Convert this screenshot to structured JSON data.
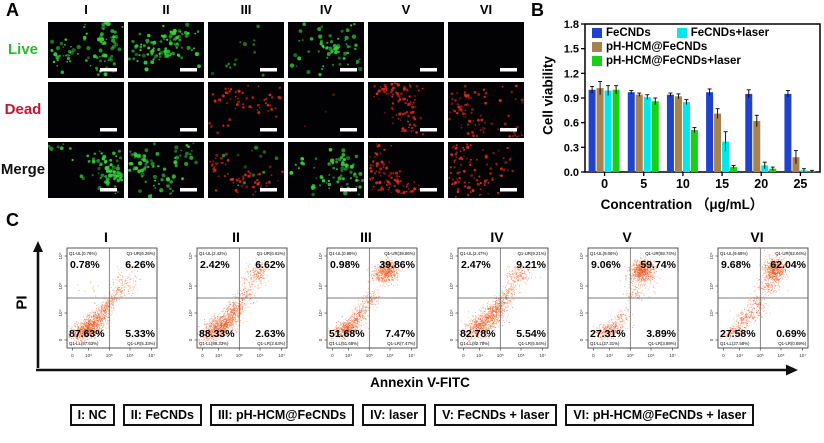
{
  "panelA": {
    "label": "A",
    "columns": [
      "I",
      "II",
      "III",
      "IV",
      "V",
      "VI"
    ],
    "rows": [
      {
        "label": "Live",
        "color": "#2eb82e"
      },
      {
        "label": "Dead",
        "color": "#c61534"
      },
      {
        "label": "Merge",
        "color": "#111111"
      }
    ],
    "cells": {
      "Live": [
        {
          "green": 95,
          "red": 0
        },
        {
          "green": 100,
          "red": 0
        },
        {
          "green": 14,
          "red": 0
        },
        {
          "green": 80,
          "red": 0
        },
        {
          "green": 0,
          "red": 0
        },
        {
          "green": 0,
          "red": 0
        }
      ],
      "Dead": [
        {
          "green": 0,
          "red": 0
        },
        {
          "green": 0,
          "red": 0
        },
        {
          "green": 0,
          "red": 70
        },
        {
          "green": 0,
          "red": 3
        },
        {
          "green": 0,
          "red": 120
        },
        {
          "green": 0,
          "red": 110
        }
      ],
      "Merge": [
        {
          "green": 95,
          "red": 0
        },
        {
          "green": 100,
          "red": 0
        },
        {
          "green": 12,
          "red": 70
        },
        {
          "green": 80,
          "red": 0
        },
        {
          "green": 0,
          "red": 120
        },
        {
          "green": 0,
          "red": 110
        }
      ]
    },
    "scale_bar_color": "#ffffff"
  },
  "panelB": {
    "label": "B"
  },
  "panelC": {
    "label": "C"
  },
  "chart_data": [
    {
      "type": "bar",
      "title": "",
      "categories": [
        "0",
        "5",
        "10",
        "15",
        "20",
        "25"
      ],
      "series": [
        {
          "name": "FeCNDs",
          "color": "#2143cb",
          "values": [
            1.0,
            0.97,
            0.94,
            0.97,
            0.95,
            0.95
          ],
          "errors": [
            0.04,
            0.02,
            0.02,
            0.04,
            0.05,
            0.04
          ]
        },
        {
          "name": "pH-HCM@FeCNDs",
          "color": "#a6824e",
          "values": [
            1.02,
            0.94,
            0.92,
            0.71,
            0.62,
            0.18
          ],
          "errors": [
            0.08,
            0.02,
            0.03,
            0.06,
            0.07,
            0.08
          ]
        },
        {
          "name": "FeCNDs+laser",
          "color": "#00e8ea",
          "values": [
            0.99,
            0.91,
            0.85,
            0.37,
            0.08,
            0.02
          ],
          "errors": [
            0.06,
            0.03,
            0.03,
            0.12,
            0.04,
            0.02
          ]
        },
        {
          "name": "pH-HCM@FeCNDs+laser",
          "color": "#16d116",
          "values": [
            1.0,
            0.86,
            0.51,
            0.06,
            0.04,
            0.01
          ],
          "errors": [
            0.05,
            0.04,
            0.03,
            0.02,
            0.02,
            0.01
          ]
        }
      ],
      "xlabel": "Concentration （μg/mL）",
      "ylabel": "Cell viability",
      "ylim": [
        0,
        1.8
      ],
      "yticks": [
        "0.0",
        "0.3",
        "0.6",
        "0.9",
        "1.2",
        "1.5",
        "1.8"
      ],
      "grid": false,
      "legend_position": "top-left-inside",
      "bar_order": [
        "FeCNDs",
        "pH-HCM@FeCNDs",
        "FeCNDs+laser",
        "pH-HCM@FeCNDs+laser"
      ]
    },
    {
      "type": "scatter",
      "subtype": "flow-cytometry-quadrants",
      "xlabel": "Annexin V-FITC",
      "ylabel": "PI",
      "xticks": [
        "0",
        "10⁴",
        "10⁵",
        "10⁶",
        "10⁷"
      ],
      "yticks": [
        "0",
        "10⁴",
        "10⁵",
        "10⁶"
      ],
      "point_color": "#f26a35",
      "point_color_dense": "#e8490f",
      "plots": [
        {
          "title": "I",
          "quadrants": {
            "UL": "0.78%",
            "UR": "6.26%",
            "LL": "87.63%",
            "LR": "5.33%"
          },
          "corner_labels": {
            "UL": "Q1-UL(0.78%)",
            "UR": "Q1-UR(6.26%)",
            "LL": "Q1-LL(87.63%)",
            "LR": "Q1-LR(5.33%)"
          },
          "clusters": [
            [
              23,
              81,
              10,
              4.5,
              -22,
              620
            ],
            [
              37,
              67,
              9,
              4,
              -38,
              230
            ],
            [
              49,
              53,
              6,
              3.5,
              -42,
              80
            ],
            [
              66,
              34,
              8,
              6,
              -25,
              75
            ],
            [
              57,
              43,
              4,
              3,
              -30,
              30
            ],
            [
              30,
              40,
              10,
              5,
              0,
              10
            ]
          ]
        },
        {
          "title": "II",
          "quadrants": {
            "UL": "2.42%",
            "UR": "6.62%",
            "LL": "88.33%",
            "LR": "2.63%"
          },
          "corner_labels": {
            "UL": "Q1-UL(2.42%)",
            "UR": "Q1-UR(6.62%)",
            "LL": "Q1-LL(88.33%)",
            "LR": "Q1-LR(2.63%)"
          },
          "clusters": [
            [
              25,
              79,
              11,
              5,
              -25,
              620
            ],
            [
              41,
              62,
              9,
              4.5,
              -40,
              250
            ],
            [
              54,
              46,
              5,
              4,
              -38,
              60
            ],
            [
              65,
              28,
              7,
              5,
              -18,
              130
            ],
            [
              71,
              20,
              4,
              3.5,
              0,
              35
            ]
          ]
        },
        {
          "title": "III",
          "quadrants": {
            "UL": "0.98%",
            "UR": "39.86%",
            "LL": "51.68%",
            "LR": "7.47%"
          },
          "corner_labels": {
            "UL": "Q1-UL(0.98%)",
            "UR": "Q1-UR(39.86%)",
            "LL": "Q1-LL(51.68%)",
            "LR": "Q1-LR(7.47%)"
          },
          "clusters": [
            [
              21,
              81,
              8,
              4,
              -22,
              340
            ],
            [
              35,
              68,
              8,
              4,
              -38,
              180
            ],
            [
              49,
              51,
              6,
              3.5,
              -42,
              80
            ],
            [
              65,
              25,
              7,
              5,
              -12,
              400
            ],
            [
              70,
              18,
              4,
              3.5,
              0,
              90
            ]
          ]
        },
        {
          "title": "IV",
          "quadrants": {
            "UL": "2.47%",
            "UR": "9.21%",
            "LL": "82.78%",
            "LR": "5.54%"
          },
          "corner_labels": {
            "UL": "Q1-UL(2.47%)",
            "UR": "Q1-UR(9.21%)",
            "LL": "Q1-LL(82.78%)",
            "LR": "Q1-LR(5.54%)"
          },
          "clusters": [
            [
              27,
              76,
              12,
              5.5,
              -28,
              580
            ],
            [
              44,
              59,
              8,
              4.5,
              -40,
              250
            ],
            [
              56,
              45,
              5,
              3.5,
              -38,
              70
            ],
            [
              67,
              27,
              7,
              5,
              -18,
              140
            ]
          ]
        },
        {
          "title": "V",
          "quadrants": {
            "UL": "9.06%",
            "UR": "59.74%",
            "LL": "27.31%",
            "LR": "3.89%"
          },
          "corner_labels": {
            "UL": "Q1-UL(9.06%)",
            "UR": "Q1-UR(59.74%)",
            "LL": "Q1-LL(27.31%)",
            "LR": "Q1-LR(3.89%)"
          },
          "clusters": [
            [
              60,
              22,
              6.5,
              5,
              -12,
              470
            ],
            [
              62,
              29,
              9,
              7,
              -20,
              120
            ],
            [
              52,
              46,
              4,
              5,
              -62,
              50
            ],
            [
              23,
              82,
              9,
              4,
              -18,
              230
            ],
            [
              37,
              69,
              6,
              3.5,
              -35,
              50
            ]
          ]
        },
        {
          "title": "VI",
          "quadrants": {
            "UL": "9.68%",
            "UR": "62.04%",
            "LL": "27.58%",
            "LR": "0.69%"
          },
          "corner_labels": {
            "UL": "Q1-UL(9.68%)",
            "UR": "Q1-UR(62.04%)",
            "LL": "Q1-LL(27.58%)",
            "LR": "Q1-LR(0.69%)"
          },
          "clusters": [
            [
              63,
              22,
              6,
              5.5,
              -12,
              500
            ],
            [
              55,
              38,
              4.5,
              6,
              -66,
              100
            ],
            [
              44,
              56,
              4.5,
              5.5,
              -56,
              90
            ],
            [
              30,
              70,
              7,
              4.5,
              -40,
              140
            ],
            [
              18,
              84,
              6,
              3,
              -18,
              110
            ]
          ]
        }
      ]
    }
  ],
  "bottom_legend": {
    "items": [
      {
        "label": "I: NC"
      },
      {
        "label": "II: FeCNDs"
      },
      {
        "label": "III: pH-HCM@FeCNDs"
      },
      {
        "label": "IV: laser"
      },
      {
        "label": "V: FeCNDs + laser"
      },
      {
        "label": "VI: pH-HCM@FeCNDs + laser"
      }
    ]
  }
}
